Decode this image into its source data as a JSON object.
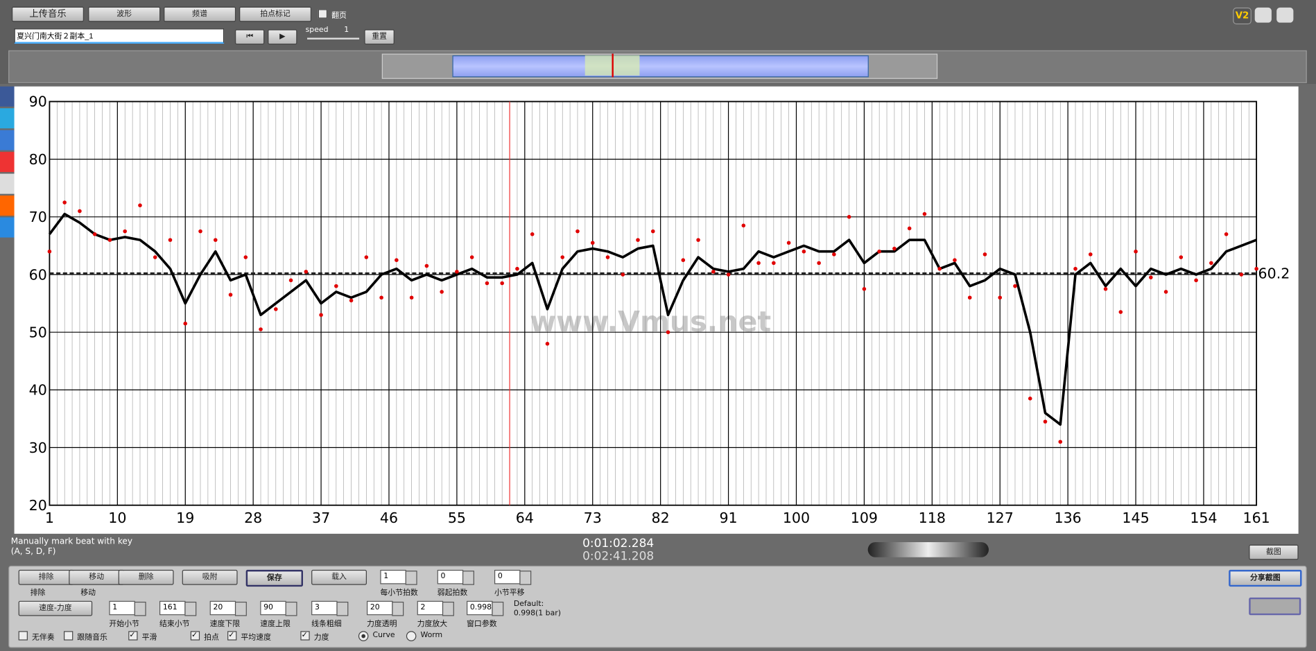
{
  "toolbar": {
    "buttons": [
      "上传音乐",
      "波形",
      "频谱",
      "拍点标记"
    ],
    "page_checkbox": "翻页",
    "filename": "夏兴门南大街２副本_1",
    "speed_label": "speed",
    "speed_value": 1,
    "reset": "重置",
    "version": "V2"
  },
  "chart_data": {
    "type": "line",
    "watermark": "www.Vmus.net",
    "x": [
      1,
      3,
      5,
      7,
      9,
      11,
      13,
      15,
      17,
      19,
      21,
      23,
      25,
      27,
      29,
      31,
      33,
      35,
      37,
      39,
      41,
      43,
      45,
      47,
      49,
      51,
      53,
      55,
      57,
      59,
      61,
      63,
      65,
      67,
      69,
      71,
      73,
      75,
      77,
      79,
      81,
      83,
      85,
      87,
      89,
      91,
      93,
      95,
      97,
      99,
      101,
      103,
      105,
      107,
      109,
      111,
      113,
      115,
      117,
      119,
      121,
      123,
      125,
      127,
      129,
      131,
      133,
      135,
      137,
      139,
      141,
      143,
      145,
      147,
      149,
      151,
      153,
      155,
      157,
      159,
      161
    ],
    "series": [
      {
        "name": "平滑",
        "color": "#000000",
        "values": [
          67,
          70.5,
          69,
          67,
          66,
          66.5,
          66,
          64,
          61,
          55,
          60,
          64,
          59,
          60,
          53,
          55,
          57,
          59,
          55,
          57,
          56,
          57,
          60,
          61,
          59,
          60,
          59,
          60,
          61,
          59.5,
          59.5,
          60,
          62,
          54,
          61,
          64,
          64.5,
          64,
          63,
          64.5,
          65,
          53,
          59,
          63,
          61,
          60.5,
          61,
          64,
          63,
          64,
          65,
          64,
          64,
          66,
          62,
          64,
          64,
          66,
          66,
          61,
          62,
          58,
          59,
          61,
          60,
          50,
          36,
          34,
          60,
          62,
          58,
          61,
          58,
          61,
          60,
          61,
          60,
          61,
          64,
          65,
          66
        ]
      },
      {
        "name": "拍点",
        "color": "#e00000",
        "values": [
          64,
          72.5,
          71,
          67,
          66,
          67.5,
          72,
          63,
          66,
          51.5,
          67.5,
          66,
          56.5,
          63,
          50.5,
          54,
          59,
          60.5,
          53,
          58,
          55.5,
          63,
          56,
          62.5,
          56,
          61.5,
          57,
          60.5,
          63,
          58.5,
          58.5,
          61,
          67,
          48,
          63,
          67.5,
          65.5,
          63,
          60,
          66,
          67.5,
          50,
          62.5,
          66,
          60.5,
          60,
          68.5,
          62,
          62,
          65.5,
          64,
          62,
          63.5,
          70,
          57.5,
          64,
          64.5,
          68,
          70.5,
          61,
          62.5,
          56,
          63.5,
          56,
          58,
          38.5,
          34.5,
          31,
          61,
          63.5,
          57.5,
          53.5,
          64,
          59.5,
          57,
          63,
          59,
          62,
          67,
          60,
          61
        ]
      }
    ],
    "mean_line": 60.2,
    "cursor": 62,
    "xlim": [
      1,
      161
    ],
    "xticks": [
      1,
      10,
      19,
      28,
      37,
      46,
      55,
      64,
      73,
      82,
      91,
      100,
      109,
      118,
      127,
      136,
      145,
      154,
      161
    ],
    "ylim": [
      20,
      90
    ],
    "yticks": [
      20,
      30,
      40,
      50,
      60,
      70,
      80,
      90
    ],
    "grid": true
  },
  "status": {
    "hint": "Manually mark beat with key",
    "keys": "(A, S, D, F)",
    "time_current": "0:01:02.284",
    "time_total": "0:02:41.208",
    "screenshot": "截图"
  },
  "controls": {
    "row1_buttons": [
      "排除",
      "移动",
      "删除",
      "吸附",
      "保存",
      "载入"
    ],
    "row1_icon_labels": [
      "排除",
      "移动"
    ],
    "row1_spinners": [
      {
        "value": 1,
        "label": "每小节拍数"
      },
      {
        "value": 0,
        "label": "弱起拍数"
      },
      {
        "value": 0,
        "label": "小节平移"
      }
    ],
    "share": "分享截图",
    "mode": "速度-力度",
    "row2_spinners": [
      {
        "value": 1,
        "label": "开始小节"
      },
      {
        "value": 161,
        "label": "结束小节"
      },
      {
        "value": 20,
        "label": "速度下限"
      },
      {
        "value": 90,
        "label": "速度上限"
      },
      {
        "value": 3,
        "label": "线条粗细"
      },
      {
        "value": 20,
        "label": "力度透明"
      },
      {
        "value": 2,
        "label": "力度放大"
      },
      {
        "value": 0.998,
        "label": "窗口参数"
      }
    ],
    "default_label": "Default:",
    "default_value": "0.998(1 bar)",
    "checkboxes": [
      {
        "label": "无伴奏",
        "checked": false
      },
      {
        "label": "跟随音乐",
        "checked": false
      },
      {
        "label": "平滑",
        "checked": true
      },
      {
        "label": "拍点",
        "checked": true
      },
      {
        "label": "平均速度",
        "checked": true
      },
      {
        "label": "力度",
        "checked": true
      }
    ],
    "radios": [
      {
        "label": "Curve",
        "checked": true
      },
      {
        "label": "Worm",
        "checked": false
      }
    ]
  }
}
